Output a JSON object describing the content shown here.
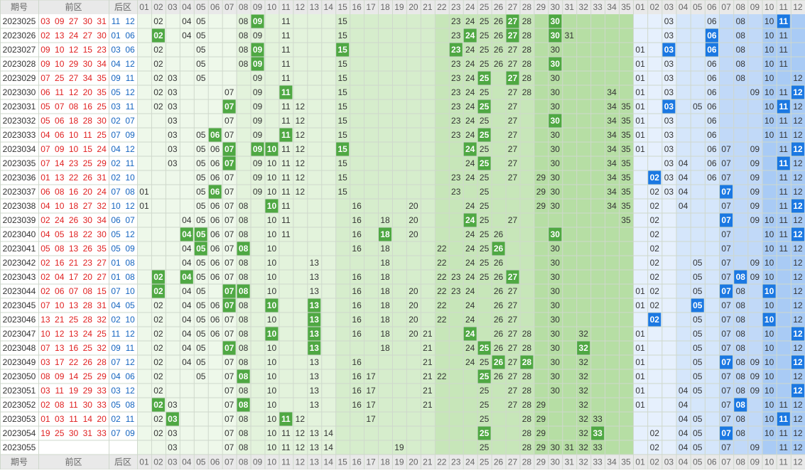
{
  "header": {
    "period": "期号",
    "front": "前区",
    "back": "后区",
    "front_columns": [
      "01",
      "02",
      "03",
      "04",
      "05",
      "06",
      "07",
      "08",
      "09",
      "10",
      "11",
      "12",
      "13",
      "14",
      "15",
      "16",
      "17",
      "18",
      "19",
      "20",
      "21",
      "22",
      "23",
      "24",
      "25",
      "26",
      "27",
      "28",
      "29",
      "30",
      "31",
      "32",
      "33",
      "34",
      "35"
    ],
    "back_columns": [
      "01",
      "02",
      "03",
      "04",
      "05",
      "06",
      "07",
      "08",
      "09",
      "10",
      "11",
      "12"
    ]
  },
  "rows": [
    {
      "period": "2023025",
      "front": [
        "03",
        "09",
        "27",
        "30",
        "31"
      ],
      "back": [
        "11",
        "12"
      ],
      "front_dist": [
        "02",
        "04",
        "05",
        "08",
        "09",
        "11",
        "15",
        "23",
        "24",
        "25",
        "26",
        "27",
        "28",
        "30"
      ],
      "back_dist": [
        "03",
        "06",
        "08",
        "10",
        "11"
      ]
    },
    {
      "period": "2023026",
      "front": [
        "02",
        "13",
        "24",
        "27",
        "30"
      ],
      "back": [
        "01",
        "06"
      ],
      "front_dist": [
        "02",
        "04",
        "05",
        "08",
        "09",
        "11",
        "15",
        "23",
        "24",
        "25",
        "26",
        "27",
        "28",
        "30",
        "31"
      ],
      "back_dist": [
        "03",
        "06",
        "08",
        "10",
        "11"
      ]
    },
    {
      "period": "2023027",
      "front": [
        "09",
        "10",
        "12",
        "15",
        "23"
      ],
      "back": [
        "03",
        "06"
      ],
      "front_dist": [
        "02",
        "05",
        "08",
        "09",
        "11",
        "15",
        "23",
        "24",
        "25",
        "26",
        "27",
        "28",
        "30"
      ],
      "back_dist": [
        "01",
        "03",
        "06",
        "08",
        "10",
        "11"
      ]
    },
    {
      "period": "2023028",
      "front": [
        "09",
        "10",
        "29",
        "30",
        "34"
      ],
      "back": [
        "04",
        "12"
      ],
      "front_dist": [
        "02",
        "05",
        "08",
        "09",
        "11",
        "15",
        "23",
        "24",
        "25",
        "26",
        "27",
        "28",
        "30"
      ],
      "back_dist": [
        "01",
        "03",
        "06",
        "08",
        "10",
        "11"
      ]
    },
    {
      "period": "2023029",
      "front": [
        "07",
        "25",
        "27",
        "34",
        "35"
      ],
      "back": [
        "09",
        "11"
      ],
      "front_dist": [
        "02",
        "03",
        "05",
        "09",
        "11",
        "15",
        "23",
        "24",
        "25",
        "27",
        "28",
        "30"
      ],
      "back_dist": [
        "01",
        "03",
        "06",
        "08",
        "10",
        "12"
      ]
    },
    {
      "period": "2023030",
      "front": [
        "06",
        "11",
        "12",
        "20",
        "35"
      ],
      "back": [
        "05",
        "12"
      ],
      "front_dist": [
        "02",
        "03",
        "07",
        "09",
        "11",
        "15",
        "23",
        "24",
        "25",
        "27",
        "28",
        "30",
        "34"
      ],
      "back_dist": [
        "01",
        "03",
        "06",
        "09",
        "10",
        "11",
        "12"
      ]
    },
    {
      "period": "2023031",
      "front": [
        "05",
        "07",
        "08",
        "16",
        "25"
      ],
      "back": [
        "03",
        "11"
      ],
      "front_dist": [
        "02",
        "03",
        "07",
        "09",
        "11",
        "12",
        "15",
        "23",
        "24",
        "25",
        "27",
        "30",
        "34",
        "35"
      ],
      "back_dist": [
        "01",
        "03",
        "05",
        "06",
        "10",
        "11",
        "12"
      ]
    },
    {
      "period": "2023032",
      "front": [
        "05",
        "06",
        "18",
        "28",
        "30"
      ],
      "back": [
        "02",
        "07"
      ],
      "front_dist": [
        "03",
        "07",
        "09",
        "11",
        "12",
        "15",
        "23",
        "24",
        "25",
        "27",
        "30",
        "34",
        "35"
      ],
      "back_dist": [
        "01",
        "03",
        "06",
        "10",
        "11",
        "12"
      ]
    },
    {
      "period": "2023033",
      "front": [
        "04",
        "06",
        "10",
        "11",
        "25"
      ],
      "back": [
        "07",
        "09"
      ],
      "front_dist": [
        "03",
        "05",
        "06",
        "07",
        "09",
        "11",
        "12",
        "15",
        "23",
        "24",
        "25",
        "27",
        "30",
        "34",
        "35"
      ],
      "back_dist": [
        "01",
        "03",
        "06",
        "10",
        "11",
        "12"
      ]
    },
    {
      "period": "2023034",
      "front": [
        "07",
        "09",
        "10",
        "15",
        "24"
      ],
      "back": [
        "04",
        "12"
      ],
      "front_dist": [
        "03",
        "05",
        "06",
        "07",
        "09",
        "10",
        "11",
        "12",
        "15",
        "24",
        "25",
        "27",
        "30",
        "34",
        "35"
      ],
      "back_dist": [
        "01",
        "03",
        "06",
        "07",
        "09",
        "11",
        "12"
      ]
    },
    {
      "period": "2023035",
      "front": [
        "07",
        "14",
        "23",
        "25",
        "29"
      ],
      "back": [
        "02",
        "11"
      ],
      "front_dist": [
        "03",
        "05",
        "06",
        "07",
        "09",
        "10",
        "11",
        "12",
        "15",
        "24",
        "25",
        "27",
        "30",
        "34",
        "35"
      ],
      "back_dist": [
        "03",
        "04",
        "06",
        "07",
        "09",
        "11",
        "12"
      ]
    },
    {
      "period": "2023036",
      "front": [
        "01",
        "13",
        "22",
        "26",
        "31"
      ],
      "back": [
        "02",
        "10"
      ],
      "front_dist": [
        "05",
        "06",
        "07",
        "09",
        "10",
        "11",
        "12",
        "15",
        "23",
        "24",
        "25",
        "27",
        "29",
        "30",
        "34",
        "35"
      ],
      "back_dist": [
        "02",
        "03",
        "04",
        "06",
        "07",
        "09",
        "11",
        "12"
      ]
    },
    {
      "period": "2023037",
      "front": [
        "06",
        "08",
        "16",
        "20",
        "24"
      ],
      "back": [
        "07",
        "08"
      ],
      "front_dist": [
        "01",
        "05",
        "06",
        "07",
        "09",
        "10",
        "11",
        "12",
        "15",
        "23",
        "25",
        "29",
        "30",
        "34",
        "35"
      ],
      "back_dist": [
        "02",
        "03",
        "04",
        "07",
        "09",
        "11",
        "12"
      ]
    },
    {
      "period": "2023038",
      "front": [
        "04",
        "10",
        "18",
        "27",
        "32"
      ],
      "back": [
        "10",
        "12"
      ],
      "front_dist": [
        "01",
        "05",
        "06",
        "07",
        "08",
        "10",
        "11",
        "16",
        "20",
        "24",
        "25",
        "29",
        "30",
        "34",
        "35"
      ],
      "back_dist": [
        "02",
        "04",
        "07",
        "09",
        "11",
        "12"
      ]
    },
    {
      "period": "2023039",
      "front": [
        "02",
        "24",
        "26",
        "30",
        "34"
      ],
      "back": [
        "06",
        "07"
      ],
      "front_dist": [
        "04",
        "05",
        "06",
        "07",
        "08",
        "10",
        "11",
        "16",
        "18",
        "20",
        "24",
        "25",
        "27",
        "35"
      ],
      "back_dist": [
        "02",
        "07",
        "09",
        "10",
        "11",
        "12"
      ]
    },
    {
      "period": "2023040",
      "front": [
        "04",
        "05",
        "18",
        "22",
        "30"
      ],
      "back": [
        "05",
        "12"
      ],
      "front_dist": [
        "04",
        "05",
        "06",
        "07",
        "08",
        "10",
        "11",
        "16",
        "18",
        "20",
        "24",
        "25",
        "26",
        "30"
      ],
      "back_dist": [
        "02",
        "07",
        "10",
        "11",
        "12"
      ]
    },
    {
      "period": "2023041",
      "front": [
        "05",
        "08",
        "13",
        "26",
        "35"
      ],
      "back": [
        "05",
        "09"
      ],
      "front_dist": [
        "04",
        "05",
        "06",
        "07",
        "08",
        "10",
        "16",
        "18",
        "22",
        "24",
        "25",
        "26",
        "30"
      ],
      "back_dist": [
        "02",
        "07",
        "10",
        "11",
        "12"
      ]
    },
    {
      "period": "2023042",
      "front": [
        "02",
        "16",
        "21",
        "23",
        "27"
      ],
      "back": [
        "01",
        "08"
      ],
      "front_dist": [
        "04",
        "05",
        "06",
        "07",
        "08",
        "10",
        "13",
        "18",
        "22",
        "24",
        "25",
        "26",
        "30"
      ],
      "back_dist": [
        "02",
        "05",
        "07",
        "09",
        "10",
        "12"
      ]
    },
    {
      "period": "2023043",
      "front": [
        "02",
        "04",
        "17",
        "20",
        "27"
      ],
      "back": [
        "01",
        "08"
      ],
      "front_dist": [
        "02",
        "04",
        "05",
        "06",
        "07",
        "08",
        "10",
        "13",
        "16",
        "18",
        "22",
        "23",
        "24",
        "25",
        "26",
        "27",
        "30"
      ],
      "back_dist": [
        "02",
        "05",
        "07",
        "08",
        "09",
        "10",
        "12"
      ]
    },
    {
      "period": "2023044",
      "front": [
        "02",
        "06",
        "07",
        "08",
        "15"
      ],
      "back": [
        "07",
        "10"
      ],
      "front_dist": [
        "02",
        "04",
        "05",
        "07",
        "08",
        "10",
        "13",
        "16",
        "18",
        "20",
        "22",
        "23",
        "24",
        "26",
        "27",
        "30"
      ],
      "back_dist": [
        "01",
        "02",
        "05",
        "07",
        "08",
        "10",
        "12"
      ]
    },
    {
      "period": "2023045",
      "front": [
        "07",
        "10",
        "13",
        "28",
        "31"
      ],
      "back": [
        "04",
        "05"
      ],
      "front_dist": [
        "02",
        "04",
        "05",
        "06",
        "07",
        "08",
        "10",
        "13",
        "16",
        "18",
        "20",
        "22",
        "24",
        "26",
        "27",
        "30"
      ],
      "back_dist": [
        "01",
        "02",
        "05",
        "07",
        "08",
        "10",
        "12"
      ]
    },
    {
      "period": "2023046",
      "front": [
        "13",
        "21",
        "25",
        "28",
        "32"
      ],
      "back": [
        "02",
        "10"
      ],
      "front_dist": [
        "02",
        "04",
        "05",
        "06",
        "07",
        "08",
        "10",
        "13",
        "16",
        "18",
        "20",
        "22",
        "24",
        "26",
        "27",
        "30"
      ],
      "back_dist": [
        "02",
        "05",
        "07",
        "08",
        "10",
        "12"
      ]
    },
    {
      "period": "2023047",
      "front": [
        "10",
        "12",
        "13",
        "24",
        "25"
      ],
      "back": [
        "11",
        "12"
      ],
      "front_dist": [
        "02",
        "04",
        "05",
        "06",
        "07",
        "08",
        "10",
        "13",
        "16",
        "18",
        "20",
        "21",
        "24",
        "26",
        "27",
        "28",
        "30",
        "32"
      ],
      "back_dist": [
        "01",
        "05",
        "07",
        "08",
        "10",
        "12"
      ]
    },
    {
      "period": "2023048",
      "front": [
        "07",
        "13",
        "16",
        "25",
        "32"
      ],
      "back": [
        "09",
        "11"
      ],
      "front_dist": [
        "02",
        "04",
        "05",
        "07",
        "08",
        "10",
        "13",
        "18",
        "21",
        "24",
        "25",
        "26",
        "27",
        "28",
        "30",
        "32"
      ],
      "back_dist": [
        "01",
        "05",
        "07",
        "08",
        "10",
        "12"
      ]
    },
    {
      "period": "2023049",
      "front": [
        "03",
        "17",
        "22",
        "26",
        "28"
      ],
      "back": [
        "07",
        "12"
      ],
      "front_dist": [
        "02",
        "04",
        "05",
        "07",
        "08",
        "10",
        "13",
        "16",
        "21",
        "24",
        "25",
        "26",
        "27",
        "28",
        "30",
        "32"
      ],
      "back_dist": [
        "01",
        "05",
        "07",
        "08",
        "09",
        "10",
        "12"
      ]
    },
    {
      "period": "2023050",
      "front": [
        "08",
        "09",
        "14",
        "25",
        "29"
      ],
      "back": [
        "04",
        "06"
      ],
      "front_dist": [
        "02",
        "05",
        "07",
        "08",
        "10",
        "13",
        "16",
        "17",
        "21",
        "22",
        "25",
        "26",
        "27",
        "28",
        "30",
        "32"
      ],
      "back_dist": [
        "01",
        "05",
        "07",
        "08",
        "09",
        "10",
        "12"
      ]
    },
    {
      "period": "2023051",
      "front": [
        "03",
        "11",
        "19",
        "29",
        "33"
      ],
      "back": [
        "03",
        "12"
      ],
      "front_dist": [
        "02",
        "07",
        "08",
        "10",
        "13",
        "16",
        "17",
        "21",
        "25",
        "27",
        "28",
        "30",
        "32"
      ],
      "back_dist": [
        "01",
        "04",
        "05",
        "07",
        "08",
        "09",
        "10",
        "12"
      ]
    },
    {
      "period": "2023052",
      "front": [
        "02",
        "08",
        "11",
        "30",
        "33"
      ],
      "back": [
        "05",
        "08"
      ],
      "front_dist": [
        "02",
        "03",
        "07",
        "08",
        "10",
        "13",
        "16",
        "17",
        "21",
        "25",
        "27",
        "28",
        "29",
        "32"
      ],
      "back_dist": [
        "01",
        "04",
        "07",
        "08",
        "10",
        "11",
        "12"
      ]
    },
    {
      "period": "2023053",
      "front": [
        "01",
        "03",
        "11",
        "14",
        "20"
      ],
      "back": [
        "02",
        "11"
      ],
      "front_dist": [
        "02",
        "03",
        "07",
        "08",
        "10",
        "11",
        "12",
        "17",
        "25",
        "28",
        "29",
        "32",
        "33"
      ],
      "back_dist": [
        "04",
        "05",
        "07",
        "08",
        "10",
        "11",
        "12"
      ]
    },
    {
      "period": "2023054",
      "front": [
        "19",
        "25",
        "30",
        "31",
        "33"
      ],
      "back": [
        "07",
        "09"
      ],
      "front_dist": [
        "02",
        "03",
        "07",
        "08",
        "10",
        "11",
        "12",
        "13",
        "14",
        "25",
        "28",
        "29",
        "32",
        "33"
      ],
      "back_dist": [
        "02",
        "04",
        "05",
        "07",
        "08",
        "10",
        "11",
        "12"
      ]
    },
    {
      "period": "2023055",
      "front": [],
      "back": [],
      "front_dist": [
        "03",
        "07",
        "08",
        "10",
        "11",
        "12",
        "13",
        "14",
        "19",
        "25",
        "28",
        "29",
        "30",
        "31",
        "32",
        "33"
      ],
      "back_dist": [
        "02",
        "04",
        "05",
        "07",
        "09",
        "11",
        "12"
      ]
    }
  ]
}
